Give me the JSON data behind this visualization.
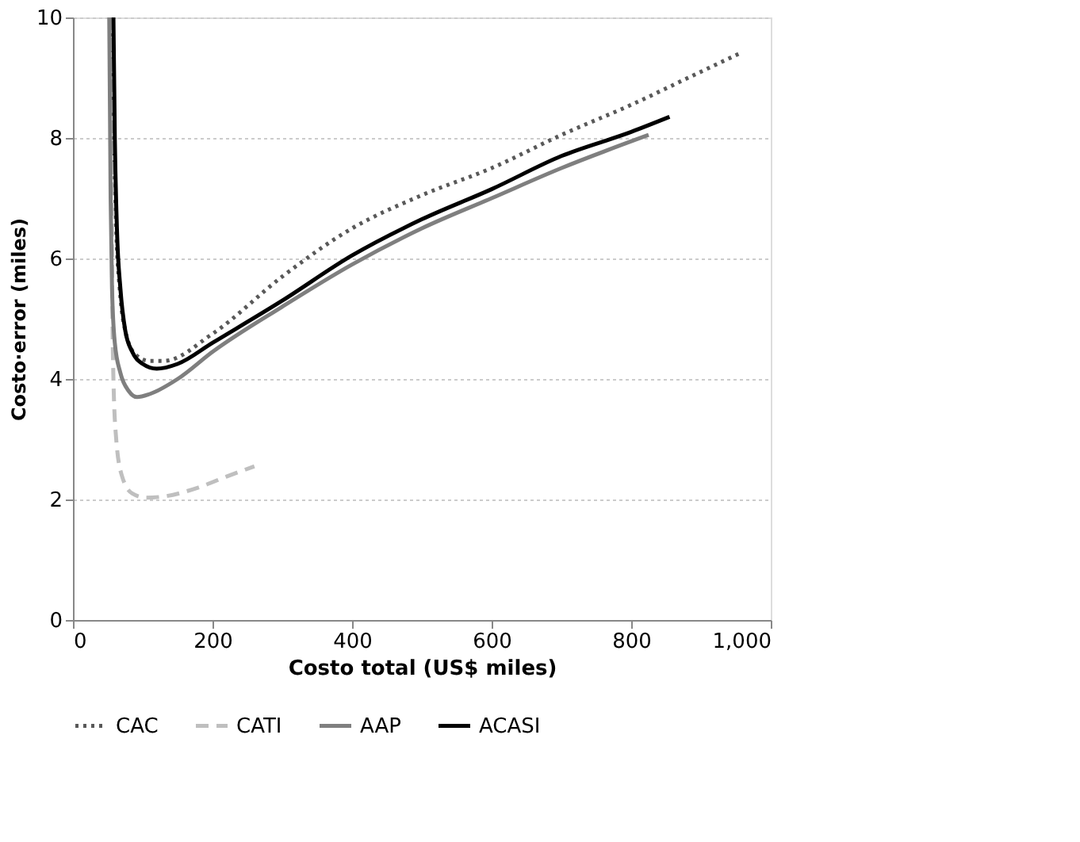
{
  "chart_data": {
    "type": "line",
    "xlabel": "Costo total (US$ miles)",
    "ylabel": "Costo·error (miles)",
    "xlim": [
      0,
      1000
    ],
    "xticks": [
      0,
      200,
      400,
      600,
      {
        "value": 800,
        "label": "800"
      },
      {
        "value": 1000,
        "label": "1,000"
      }
    ],
    "ylim": [
      0,
      10
    ],
    "yticks": [
      0,
      2,
      4,
      6,
      8,
      10
    ],
    "grid": "y",
    "legend": "bottom",
    "marker": "none",
    "series": [
      {
        "name": "CAC",
        "color": "#595959",
        "line_style": "dotted",
        "x": [
          57,
          59,
          62,
          67,
          75,
          90,
          110,
          130,
          200,
          300,
          400,
          500,
          600,
          700,
          800,
          900,
          955
        ],
        "values": [
          10,
          8,
          6.5,
          5.5,
          4.8,
          4.4,
          4.3,
          4.3,
          4.75,
          5.7,
          6.5,
          7.05,
          7.5,
          8.05,
          8.55,
          9.1,
          9.4
        ]
      },
      {
        "name": "CATI",
        "color": "#bfbfbf",
        "line_style": "dashed",
        "x": [
          55,
          56,
          58,
          62,
          70,
          85,
          105,
          130,
          180,
          220,
          260
        ],
        "values": [
          10,
          6,
          4,
          3,
          2.4,
          2.1,
          2.03,
          2.05,
          2.2,
          2.38,
          2.55
        ]
      },
      {
        "name": "AAP",
        "color": "#7f7f7f",
        "line_style": "solid",
        "x": [
          52,
          54,
          56,
          60,
          68,
          80,
          92,
          110,
          150,
          200,
          300,
          400,
          500,
          600,
          700,
          825
        ],
        "values": [
          10,
          7,
          5.5,
          4.6,
          4.1,
          3.8,
          3.7,
          3.75,
          4.0,
          4.45,
          5.2,
          5.9,
          6.5,
          7.0,
          7.5,
          8.05
        ]
      },
      {
        "name": "ACASI",
        "color": "#000000",
        "line_style": "solid",
        "x": [
          58,
          60,
          63,
          68,
          75,
          85,
          100,
          120,
          150,
          200,
          300,
          400,
          500,
          600,
          700,
          800,
          855
        ],
        "values": [
          10,
          8,
          6.5,
          5.5,
          4.8,
          4.45,
          4.25,
          4.17,
          4.25,
          4.6,
          5.3,
          6.05,
          6.65,
          7.15,
          7.7,
          8.1,
          8.35
        ]
      }
    ]
  }
}
